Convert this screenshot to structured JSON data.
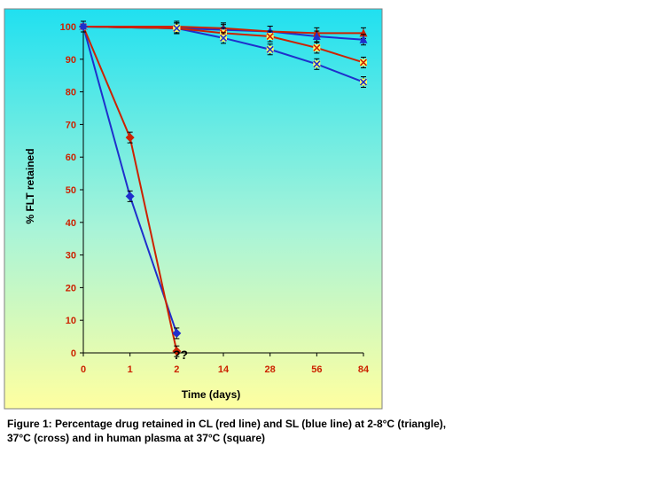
{
  "chart_data": {
    "type": "line",
    "xlabel": "Time (days)",
    "ylabel": "% FLT retained",
    "ylim": [
      0,
      100
    ],
    "yticks": [
      0,
      10,
      20,
      30,
      40,
      50,
      60,
      70,
      80,
      90,
      100
    ],
    "categories": [
      "0",
      "1",
      "2",
      "14",
      "28",
      "56",
      "84"
    ],
    "annotation": "??",
    "grid": false,
    "background": "vertical gradient cyan to pale yellow",
    "series": [
      {
        "color": "#CC2200",
        "marker": "triangle",
        "values": [
          100,
          null,
          100,
          99.5,
          98.5,
          98,
          98
        ]
      },
      {
        "color": "#1F2FCC",
        "marker": "triangle",
        "values": [
          100,
          null,
          99.5,
          99,
          98.5,
          97,
          96
        ]
      },
      {
        "color": "#CC2200",
        "marker": "cross",
        "values": [
          100,
          null,
          99.5,
          98,
          97,
          93.5,
          89
        ]
      },
      {
        "color": "#1F2FCC",
        "marker": "cross",
        "values": [
          100,
          null,
          99.5,
          96.5,
          93,
          88.5,
          83
        ]
      },
      {
        "color": "#CC2200",
        "marker": "square",
        "values": [
          100,
          66,
          0.5,
          null,
          null,
          null,
          null
        ]
      },
      {
        "color": "#1F2FCC",
        "marker": "square",
        "values": [
          100,
          48,
          6,
          null,
          null,
          null,
          null
        ]
      }
    ]
  },
  "caption": {
    "line1": "Figure 1: Percentage drug retained in CL (red line) and SL (blue line) at 2-8°C (triangle),",
    "line2": "37°C (cross) and in human plasma at 37°C (square)"
  },
  "colors": {
    "red_axis_text": "#CC2200",
    "gradient_top": "#20E0F0",
    "gradient_bottom": "#FFFFA0"
  }
}
